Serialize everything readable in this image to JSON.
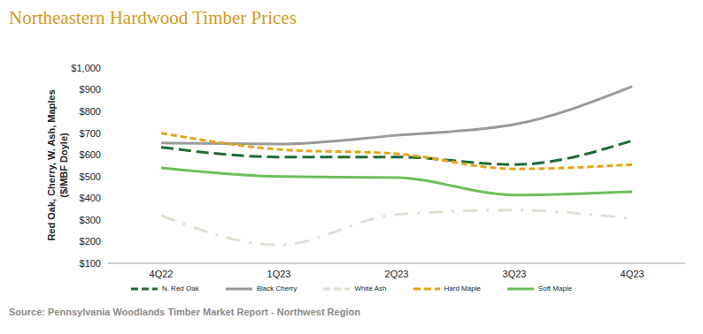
{
  "chart_data": {
    "type": "line",
    "title": "Northeastern Hardwood Timber Prices",
    "y_label": "Red Oak, Cherry, W. Ash, Maples ($/MBF Doyle)",
    "source": "Source: Pennsylvania Woodlands Timber Market Report - Northwest Region",
    "categories": [
      "4Q22",
      "1Q23",
      "2Q23",
      "3Q23",
      "4Q23"
    ],
    "series": [
      {
        "name": "N. Red Oak",
        "color": "#1e6b34",
        "line_style": "dashed",
        "values": [
          635,
          590,
          590,
          555,
          665
        ]
      },
      {
        "name": "Black Cherry",
        "color": "#9a9a9a",
        "line_style": "solid",
        "values": [
          655,
          650,
          690,
          740,
          915
        ]
      },
      {
        "name": "White Ash",
        "color": "#e3ded2",
        "line_style": "dashdot",
        "values": [
          320,
          185,
          325,
          345,
          305
        ]
      },
      {
        "name": "Hard Maple",
        "color": "#e8a317",
        "line_style": "dotted",
        "values": [
          700,
          625,
          605,
          535,
          555
        ]
      },
      {
        "name": "Soft Maple",
        "color": "#6dbf5a",
        "line_style": "solid",
        "values": [
          540,
          500,
          495,
          415,
          430
        ]
      }
    ],
    "ylim": [
      100,
      1000
    ],
    "yticks": [
      {
        "value": 100,
        "label": "$100"
      },
      {
        "value": 200,
        "label": "$200"
      },
      {
        "value": 300,
        "label": "$300"
      },
      {
        "value": 400,
        "label": "$400"
      },
      {
        "value": 500,
        "label": "$500"
      },
      {
        "value": 600,
        "label": "$600"
      },
      {
        "value": 700,
        "label": "$700"
      },
      {
        "value": 800,
        "label": "$800"
      },
      {
        "value": 900,
        "label": "$900"
      },
      {
        "value": 1000,
        "label": "$1,000"
      }
    ],
    "grid": false,
    "legend": "bottom"
  }
}
